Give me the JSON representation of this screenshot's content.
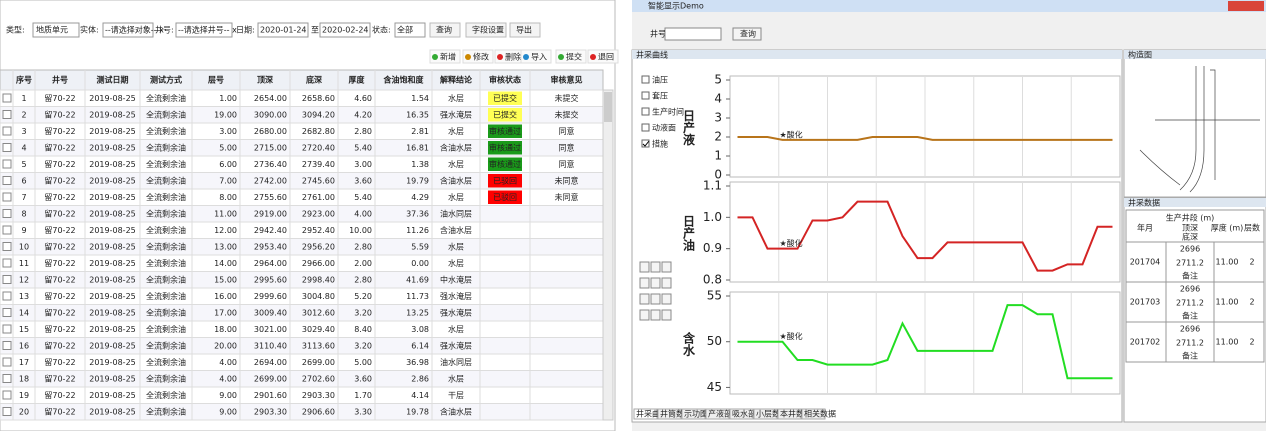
{
  "left": {
    "filters": {
      "type_label": "类型:",
      "type_value": "地质单元",
      "entity_label": "实体:",
      "entity_value": "--请选择对象-- x",
      "well_label": "井号:",
      "well_value": "--请选择井号-- x",
      "date_label": "日期:",
      "date_from": "2020-01-24",
      "date_to_label": "至",
      "date_to": "2020-02-24",
      "status_label": "状态:",
      "status_value": "全部",
      "buttons": [
        "查询",
        "字段设置",
        "导出"
      ]
    },
    "toolbar": [
      "新增",
      "修改",
      "删除",
      "导入",
      "提交",
      "退回"
    ],
    "table": {
      "headers": [
        "序号",
        "井号",
        "测试日期",
        "测试方式",
        "层号",
        "顶深",
        "底深",
        "厚度",
        "含油饱和度",
        "解释结论",
        "审核状态",
        "审核意见"
      ],
      "status_colors": {
        "已提交": "#ffff55",
        "审核通过": "#1a9a1a",
        "已驳回": "#ff0000"
      },
      "rows": [
        [
          "1",
          "留70-22",
          "2019-08-25",
          "全流剩余油",
          "1.00",
          "2654.00",
          "2658.60",
          "4.60",
          "1.54",
          "水层",
          "已提交",
          "未提交"
        ],
        [
          "2",
          "留70-22",
          "2019-08-25",
          "全流剩余油",
          "19.00",
          "3090.00",
          "3094.20",
          "4.20",
          "16.35",
          "强水淹层",
          "已提交",
          "未提交"
        ],
        [
          "3",
          "留70-22",
          "2019-08-25",
          "全流剩余油",
          "3.00",
          "2680.00",
          "2682.80",
          "2.80",
          "2.81",
          "水层",
          "审核通过",
          "同意"
        ],
        [
          "4",
          "留70-22",
          "2019-08-25",
          "全流剩余油",
          "5.00",
          "2715.00",
          "2720.40",
          "5.40",
          "16.81",
          "含油水层",
          "审核通过",
          "同意"
        ],
        [
          "5",
          "留70-22",
          "2019-08-25",
          "全流剩余油",
          "6.00",
          "2736.40",
          "2739.40",
          "3.00",
          "1.38",
          "水层",
          "审核通过",
          "同意"
        ],
        [
          "6",
          "留70-22",
          "2019-08-25",
          "全流剩余油",
          "7.00",
          "2742.00",
          "2745.60",
          "3.60",
          "19.79",
          "含油水层",
          "已驳回",
          "未同意"
        ],
        [
          "7",
          "留70-22",
          "2019-08-25",
          "全流剩余油",
          "8.00",
          "2755.60",
          "2761.00",
          "5.40",
          "4.29",
          "水层",
          "已驳回",
          "未同意"
        ],
        [
          "8",
          "留70-22",
          "2019-08-25",
          "全流剩余油",
          "11.00",
          "2919.00",
          "2923.00",
          "4.00",
          "37.36",
          "油水同层",
          "",
          ""
        ],
        [
          "9",
          "留70-22",
          "2019-08-25",
          "全流剩余油",
          "12.00",
          "2942.40",
          "2952.40",
          "10.00",
          "11.26",
          "含油水层",
          "",
          ""
        ],
        [
          "10",
          "留70-22",
          "2019-08-25",
          "全流剩余油",
          "13.00",
          "2953.40",
          "2956.20",
          "2.80",
          "5.59",
          "水层",
          "",
          ""
        ],
        [
          "11",
          "留70-22",
          "2019-08-25",
          "全流剩余油",
          "14.00",
          "2964.00",
          "2966.00",
          "2.00",
          "0.00",
          "水层",
          "",
          ""
        ],
        [
          "12",
          "留70-22",
          "2019-08-25",
          "全流剩余油",
          "15.00",
          "2995.60",
          "2998.40",
          "2.80",
          "41.69",
          "中水淹层",
          "",
          ""
        ],
        [
          "13",
          "留70-22",
          "2019-08-25",
          "全流剩余油",
          "16.00",
          "2999.60",
          "3004.80",
          "5.20",
          "11.73",
          "强水淹层",
          "",
          ""
        ],
        [
          "14",
          "留70-22",
          "2019-08-25",
          "全流剩余油",
          "17.00",
          "3009.40",
          "3012.60",
          "3.20",
          "13.25",
          "强水淹层",
          "",
          ""
        ],
        [
          "15",
          "留70-22",
          "2019-08-25",
          "全流剩余油",
          "18.00",
          "3021.00",
          "3029.40",
          "8.40",
          "3.08",
          "水层",
          "",
          ""
        ],
        [
          "16",
          "留70-22",
          "2019-08-25",
          "全流剩余油",
          "20.00",
          "3110.40",
          "3113.60",
          "3.20",
          "6.14",
          "强水淹层",
          "",
          ""
        ],
        [
          "17",
          "留70-22",
          "2019-08-25",
          "全流剩余油",
          "4.00",
          "2694.00",
          "2699.00",
          "5.00",
          "36.98",
          "油水同层",
          "",
          ""
        ],
        [
          "18",
          "留70-22",
          "2019-08-25",
          "全流剩余油",
          "4.00",
          "2699.00",
          "2702.60",
          "3.60",
          "2.86",
          "水层",
          "",
          ""
        ],
        [
          "19",
          "留70-22",
          "2019-08-25",
          "全流剩余油",
          "9.00",
          "2901.60",
          "2903.30",
          "1.70",
          "4.14",
          "干层",
          "",
          ""
        ],
        [
          "20",
          "留70-22",
          "2019-08-25",
          "全流剩余油",
          "9.00",
          "2903.30",
          "2906.60",
          "3.30",
          "19.78",
          "含油水层",
          "",
          ""
        ]
      ]
    }
  },
  "right": {
    "window_title": "智能显示Demo",
    "well_label": "井号:",
    "query": "查询",
    "curve_panel": "井采曲线",
    "structure_panel": "构造图",
    "data_panel": "井采数据",
    "checks": [
      "油压",
      "套压",
      "生产时间",
      "动液面",
      "措施"
    ],
    "annotation": "★酸化",
    "tabs": [
      "井采曲线",
      "井筒数据",
      "示功图",
      "产液剖面",
      "吸水剖面",
      "小层数据",
      "本井数据",
      "相关数据"
    ],
    "data_table": {
      "headers": [
        "年月",
        "生产井段 (m)",
        "顶深",
        "底深",
        "厚度 (m)",
        "层数"
      ],
      "rows": [
        {
          "month": "201704",
          "top": "2696",
          "bottom": "2711.2",
          "note": "备注",
          "thick": "11.00",
          "layers": "2"
        },
        {
          "month": "201703",
          "top": "2696",
          "bottom": "2711.2",
          "note": "备注",
          "thick": "11.00",
          "layers": "2"
        },
        {
          "month": "201702",
          "top": "2696",
          "bottom": "2711.2",
          "note": "备注",
          "thick": "11.00",
          "layers": "2"
        }
      ]
    }
  },
  "chart_data": [
    {
      "type": "line",
      "title": "日产液",
      "color": "#b8741a",
      "categories": [
        null,
        null,
        null,
        null,
        null,
        null,
        null,
        null,
        null,
        null,
        null,
        null,
        null,
        null,
        null,
        null,
        null,
        null,
        null,
        null,
        null,
        null,
        null,
        null,
        null,
        null
      ],
      "values": [
        2,
        2,
        2,
        1.85,
        1.85,
        1.85,
        1.85,
        1.85,
        1.85,
        2,
        2,
        2,
        2,
        1.85,
        1.85,
        1.85,
        1.85,
        1.85,
        1.85,
        1.85,
        1.85,
        1.85,
        1.85,
        1.85,
        1.85,
        1.85
      ],
      "ylim": [
        0,
        5
      ],
      "yticks": [
        0,
        1,
        2,
        3,
        4,
        5
      ]
    },
    {
      "type": "line",
      "title": "日产油",
      "color": "#d42424",
      "categories": [
        null,
        null,
        null,
        null,
        null,
        null,
        null,
        null,
        null,
        null,
        null,
        null,
        null,
        null,
        null,
        null,
        null,
        null,
        null,
        null,
        null,
        null,
        null,
        null,
        null,
        null
      ],
      "values": [
        1,
        1,
        0.9,
        0.9,
        0.9,
        0.99,
        0.99,
        1.0,
        1.05,
        1.05,
        1.05,
        0.94,
        0.87,
        0.87,
        0.92,
        0.92,
        0.92,
        0.92,
        0.92,
        0.92,
        0.83,
        0.83,
        0.85,
        0.85,
        0.97,
        0.97
      ],
      "ylim": [
        0.8,
        1.1
      ],
      "yticks": [
        0.8,
        0.9,
        {
          "value": 1,
          "label": "1.0"
        },
        1.1
      ]
    },
    {
      "type": "line",
      "title": "含水",
      "color": "#22dd22",
      "categories": [
        null,
        null,
        null,
        null,
        null,
        null,
        null,
        null,
        null,
        null,
        null,
        null,
        null,
        null,
        null,
        null,
        null,
        null,
        null,
        null,
        null,
        null,
        null,
        null,
        null,
        null
      ],
      "values": [
        50,
        50,
        50,
        50,
        48,
        48,
        47.5,
        47.5,
        47.5,
        47.5,
        48,
        52,
        49,
        49,
        49,
        49,
        49,
        49,
        54,
        54,
        53,
        53,
        46,
        46,
        46,
        46
      ],
      "ylim": [
        44.5,
        55
      ],
      "yticks": [
        45,
        50,
        55
      ]
    }
  ]
}
